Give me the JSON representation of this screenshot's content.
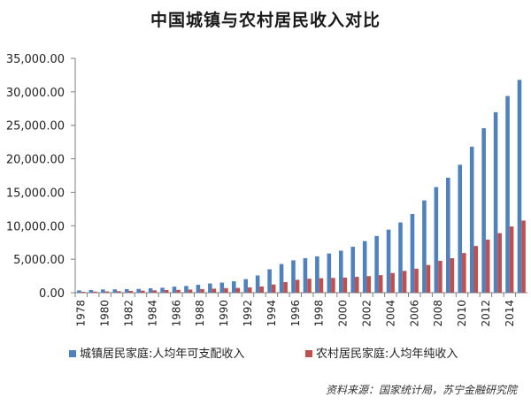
{
  "chart_data": {
    "type": "bar",
    "title": "中国城镇与农村居民收入对比",
    "xlabel": "",
    "ylabel": "",
    "ylim": [
      0,
      35000
    ],
    "yticks": [
      "0.00",
      "5,000.00",
      "10,000.00",
      "15,000.00",
      "20,000.00",
      "25,000.00",
      "30,000.00",
      "35,000.00"
    ],
    "y_tick_values": [
      0,
      5000,
      10000,
      15000,
      20000,
      25000,
      30000,
      35000
    ],
    "grid": false,
    "legend_position": "bottom",
    "categories": [
      "1978",
      "1979",
      "1980",
      "1981",
      "1982",
      "1983",
      "1984",
      "1985",
      "1986",
      "1987",
      "1988",
      "1989",
      "1990",
      "1991",
      "1992",
      "1993",
      "1994",
      "1995",
      "1996",
      "1997",
      "1998",
      "1999",
      "2000",
      "2001",
      "2002",
      "2003",
      "2004",
      "2005",
      "2006",
      "2007",
      "2008",
      "2009",
      "2010",
      "2011",
      "2012",
      "2013",
      "2014",
      "2015"
    ],
    "x_tick_labels": [
      "1978",
      "",
      "1980",
      "",
      "1982",
      "",
      "1984",
      "",
      "1986",
      "",
      "1988",
      "",
      "1990",
      "",
      "1992",
      "",
      "1994",
      "",
      "1996",
      "",
      "1998",
      "",
      "2000",
      "",
      "2002",
      "",
      "2004",
      "",
      "2006",
      "",
      "2008",
      "",
      "2010",
      "",
      "2012",
      "",
      "2014",
      ""
    ],
    "series": [
      {
        "name": "城镇居民家庭:人均年可支配收入",
        "color": "#4f81bd",
        "values": [
          343,
          405,
          478,
          500,
          535,
          565,
          652,
          739,
          900,
          1002,
          1180,
          1374,
          1510,
          1700,
          2027,
          2577,
          3496,
          4283,
          4839,
          5160,
          5425,
          5854,
          6280,
          6860,
          7703,
          8472,
          9422,
          10493,
          11759,
          13786,
          15781,
          17175,
          19109,
          21810,
          24565,
          26955,
          29381,
          31790
        ]
      },
      {
        "name": "农村居民家庭:人均年纯收入",
        "color": "#c0504d",
        "values": [
          134,
          160,
          191,
          223,
          270,
          310,
          355,
          398,
          424,
          463,
          545,
          602,
          686,
          709,
          784,
          922,
          1221,
          1578,
          1926,
          2090,
          2162,
          2210,
          2253,
          2366,
          2476,
          2622,
          2936,
          3255,
          3587,
          4140,
          4761,
          5153,
          5919,
          6977,
          7917,
          8896,
          9892,
          10772
        ]
      }
    ],
    "source_note": "资料来源：国家统计局，苏宁金融研究院"
  }
}
